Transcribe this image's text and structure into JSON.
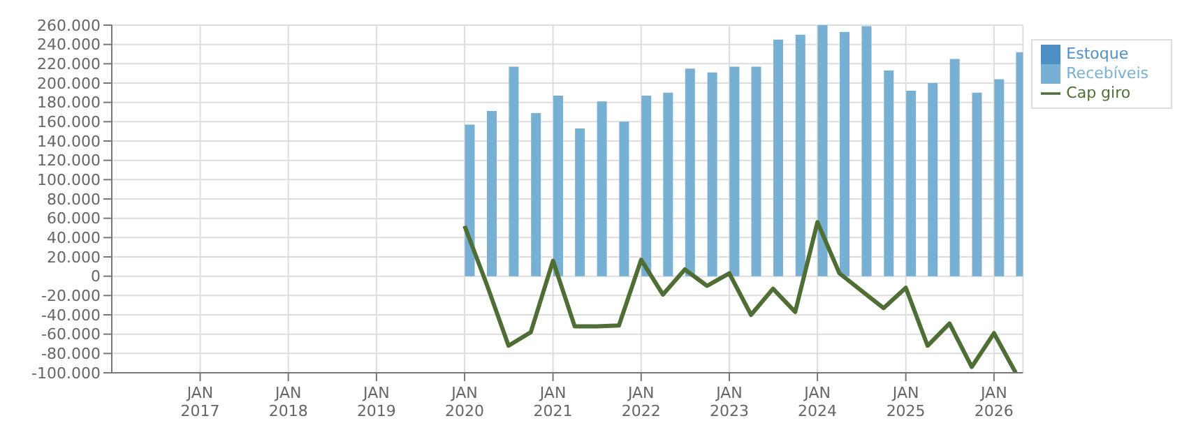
{
  "chart_data": {
    "type": "bar",
    "x": [
      "2020-01",
      "2020-04",
      "2020-07",
      "2020-10",
      "2021-01",
      "2021-04",
      "2021-07",
      "2021-10",
      "2022-01",
      "2022-04",
      "2022-07",
      "2022-10",
      "2023-01",
      "2023-04",
      "2023-07",
      "2023-10",
      "2024-01",
      "2024-04",
      "2024-07",
      "2024-10",
      "2025-01",
      "2025-04",
      "2025-07",
      "2025-10",
      "2026-01",
      "2026-04"
    ],
    "series": [
      {
        "name": "Estoque",
        "color": "#4f8fc6",
        "values": [
          null,
          null,
          null,
          null,
          null,
          null,
          null,
          null,
          null,
          null,
          null,
          null,
          null,
          null,
          null,
          null,
          null,
          null,
          null,
          null,
          null,
          null,
          null,
          null,
          null,
          null
        ]
      },
      {
        "name": "Recebíveis",
        "color": "#77b0d2",
        "values": [
          157000,
          171000,
          217000,
          169000,
          187000,
          153000,
          181000,
          160000,
          187000,
          190000,
          215000,
          211000,
          217000,
          217000,
          245000,
          250000,
          260000,
          253000,
          259000,
          213000,
          192000,
          200000,
          225000,
          190000,
          204000,
          232000
        ]
      },
      {
        "name": "Cap giro",
        "type": "line",
        "color": "#4e6e35",
        "values": [
          52000,
          -8000,
          -72000,
          -58000,
          16000,
          -52000,
          -52000,
          -51000,
          17000,
          -19000,
          7000,
          -10000,
          3000,
          -40000,
          -13000,
          -37000,
          56000,
          3000,
          -15000,
          -33000,
          -12000,
          -72000,
          -49000,
          -94000,
          -59000,
          -100000
        ]
      }
    ],
    "xlim": [
      "2016-01",
      "2026-05"
    ],
    "xticks": [
      {
        "value": "2017-01",
        "label": "JAN\n2017"
      },
      {
        "value": "2018-01",
        "label": "JAN\n2018"
      },
      {
        "value": "2019-01",
        "label": "JAN\n2019"
      },
      {
        "value": "2020-01",
        "label": "JAN\n2020"
      },
      {
        "value": "2021-01",
        "label": "JAN\n2021"
      },
      {
        "value": "2022-01",
        "label": "JAN\n2022"
      },
      {
        "value": "2023-01",
        "label": "JAN\n2023"
      },
      {
        "value": "2024-01",
        "label": "JAN\n2024"
      },
      {
        "value": "2025-01",
        "label": "JAN\n2025"
      },
      {
        "value": "2026-01",
        "label": "JAN\n2026"
      }
    ],
    "ylim": [
      -100000,
      260000
    ],
    "yticks": [
      {
        "value": -100000,
        "label": "-100.000"
      },
      {
        "value": -80000,
        "label": "-80.000"
      },
      {
        "value": -60000,
        "label": "-60.000"
      },
      {
        "value": -40000,
        "label": "-40.000"
      },
      {
        "value": -20000,
        "label": "-20.000"
      },
      {
        "value": 0,
        "label": "0"
      },
      {
        "value": 20000,
        "label": "20.000"
      },
      {
        "value": 40000,
        "label": "40.000"
      },
      {
        "value": 60000,
        "label": "60.000"
      },
      {
        "value": 80000,
        "label": "80.000"
      },
      {
        "value": 100000,
        "label": "100.000"
      },
      {
        "value": 120000,
        "label": "120.000"
      },
      {
        "value": 140000,
        "label": "140.000"
      },
      {
        "value": 160000,
        "label": "160.000"
      },
      {
        "value": 180000,
        "label": "180.000"
      },
      {
        "value": 200000,
        "label": "200.000"
      },
      {
        "value": 220000,
        "label": "220.000"
      },
      {
        "value": 240000,
        "label": "240.000"
      },
      {
        "value": 260000,
        "label": "260.000"
      }
    ],
    "grid": true,
    "legend": "top right",
    "marker": "none"
  }
}
